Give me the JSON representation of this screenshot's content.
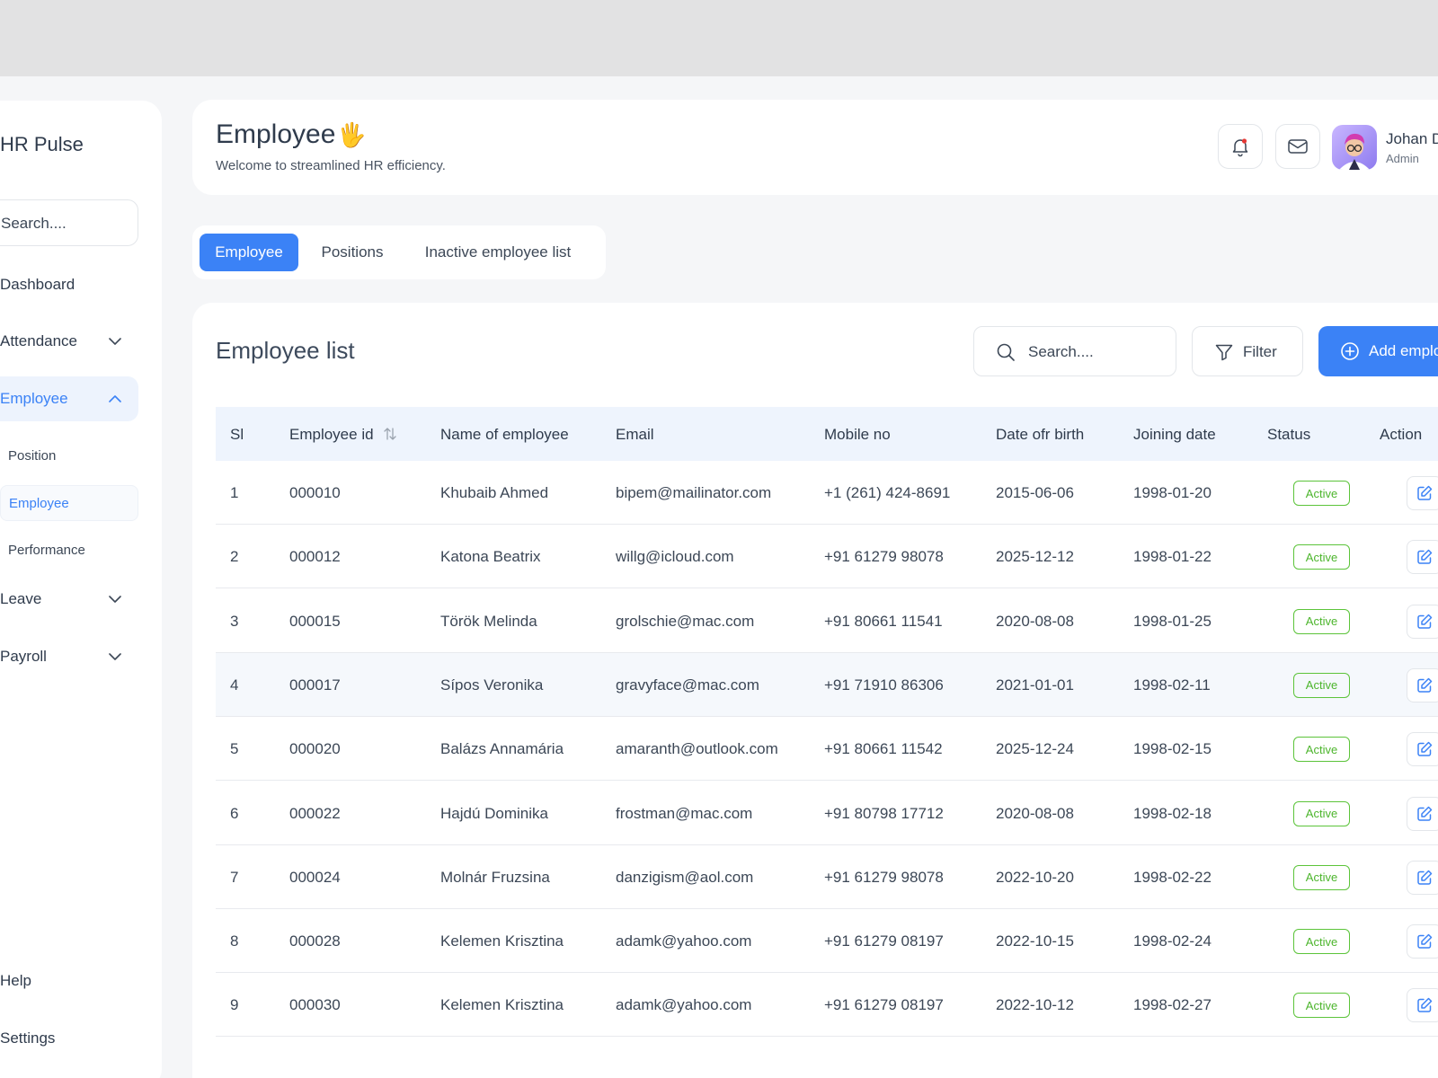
{
  "app": {
    "brand": "HR Pulse"
  },
  "sidebar": {
    "search_placeholder": "Search....",
    "items": [
      {
        "label": "Dashboard"
      },
      {
        "label": "Attendance"
      },
      {
        "label": "Employee"
      },
      {
        "label": "Leave"
      },
      {
        "label": "Payroll"
      }
    ],
    "subitems": [
      {
        "label": "Position"
      },
      {
        "label": "Employee"
      },
      {
        "label": "Performance"
      }
    ],
    "bottom": [
      {
        "label": "Help"
      },
      {
        "label": "Settings"
      }
    ]
  },
  "header": {
    "title": "Employee",
    "emoji": "🖐",
    "subtitle": "Welcome to streamlined HR efficiency.",
    "user": {
      "name": "Johan Doe",
      "role": "Admin"
    }
  },
  "tabs": [
    {
      "label": "Employee"
    },
    {
      "label": "Positions"
    },
    {
      "label": "Inactive employee list"
    }
  ],
  "table": {
    "title": "Employee list",
    "search_placeholder": "Search....",
    "filter_label": "Filter",
    "add_label": "Add employee",
    "columns": [
      "Sl",
      "Employee id",
      "Name of employee",
      "Email",
      "Mobile no",
      "Date ofr birth",
      "Joining date",
      "Status",
      "Action"
    ],
    "rows": [
      {
        "sl": "1",
        "id": "000010",
        "name": "Khubaib Ahmed",
        "email": "bipem@mailinator.com",
        "mobile": "+1 (261) 424-8691",
        "dob": "2015-06-06",
        "joined": "1998-01-20",
        "status": "Active"
      },
      {
        "sl": "2",
        "id": "000012",
        "name": "Katona Beatrix",
        "email": "willg@icloud.com",
        "mobile": "+91 61279 98078",
        "dob": "2025-12-12",
        "joined": "1998-01-22",
        "status": "Active"
      },
      {
        "sl": "3",
        "id": "000015",
        "name": "Török Melinda",
        "email": "grolschie@mac.com",
        "mobile": "+91 80661 11541",
        "dob": "2020-08-08",
        "joined": "1998-01-25",
        "status": "Active"
      },
      {
        "sl": "4",
        "id": "000017",
        "name": "Sípos Veronika",
        "email": "gravyface@mac.com",
        "mobile": "+91 71910 86306",
        "dob": "2021-01-01",
        "joined": "1998-02-11",
        "status": "Active"
      },
      {
        "sl": "5",
        "id": "000020",
        "name": "Balázs Annamária",
        "email": "amaranth@outlook.com",
        "mobile": "+91 80661 11542",
        "dob": "2025-12-24",
        "joined": "1998-02-15",
        "status": "Active"
      },
      {
        "sl": "6",
        "id": "000022",
        "name": "Hajdú Dominika",
        "email": "frostman@mac.com",
        "mobile": "+91 80798 17712",
        "dob": "2020-08-08",
        "joined": "1998-02-18",
        "status": "Active"
      },
      {
        "sl": "7",
        "id": "000024",
        "name": "Molnár Fruzsina",
        "email": "danzigism@aol.com",
        "mobile": "+91 61279 98078",
        "dob": "2022-10-20",
        "joined": "1998-02-22",
        "status": "Active"
      },
      {
        "sl": "8",
        "id": "000028",
        "name": "Kelemen Krisztina",
        "email": "adamk@yahoo.com",
        "mobile": "+91 61279 08197",
        "dob": "2022-10-15",
        "joined": "1998-02-24",
        "status": "Active"
      },
      {
        "sl": "9",
        "id": "000030",
        "name": "Kelemen Krisztina",
        "email": "adamk@yahoo.com",
        "mobile": "+91 61279 08197",
        "dob": "2022-10-12",
        "joined": "1998-02-27",
        "status": "Active"
      }
    ]
  },
  "colors": {
    "accent": "#3b82f6",
    "status_active": "#4cb52c",
    "notification_dot": "#e53935"
  },
  "icons": [
    "bell-icon",
    "mail-icon",
    "search-icon",
    "filter-icon",
    "plus-circle-icon",
    "chevron-down-icon",
    "chevron-up-icon",
    "sort-icon",
    "edit-icon"
  ]
}
